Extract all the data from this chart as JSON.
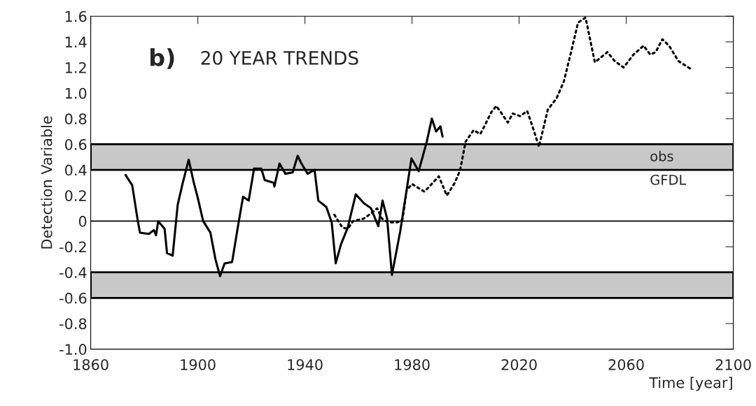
{
  "chart_data": {
    "type": "line",
    "title": "b)",
    "subtitle": "20 YEAR TRENDS",
    "xlabel": "Time [year]",
    "ylabel": "Detection Variable",
    "xlim": [
      1860,
      2100
    ],
    "xticks": [
      1860,
      1900,
      1940,
      1980,
      2020,
      2060,
      2100
    ],
    "ylim": [
      -1.0,
      1.6
    ],
    "yticks": [
      {
        "value": -1,
        "label": "-1.0"
      },
      -0.8,
      -0.6,
      -0.4,
      -0.2,
      0,
      0.2,
      0.4,
      0.6,
      0.8,
      {
        "value": 1,
        "label": "1.0"
      },
      1.2,
      1.4,
      1.6
    ],
    "grid": false,
    "marker": "none",
    "series": [
      {
        "color": "#000000",
        "line_style": "solid",
        "x": [
          1873,
          1875.5,
          1877.6,
          1878.4,
          1881.7,
          1883.6,
          1884.4,
          1885.2,
          1887.6,
          1888.5,
          1890.6,
          1892.5,
          1894.4,
          1896.6,
          1898.5,
          1900,
          1902,
          1904.7,
          1906.6,
          1908.3,
          1910,
          1912.8,
          1915,
          1916.9,
          1919,
          1921,
          1923.7,
          1925,
          1928.3,
          1928.6,
          1930.5,
          1932.7,
          1935.4,
          1937.3,
          1938.7,
          1941,
          1943.6,
          1945,
          1948,
          1950,
          1951.5,
          1953.5,
          1956,
          1959,
          1962,
          1964.7,
          1967.4,
          1969,
          1970.7,
          1972.5,
          1975.6,
          1979.8,
          1982.5,
          1985.5,
          1987.4,
          1989,
          1990.6,
          1991.4
        ],
        "values": [
          0.36,
          0.28,
          0.0,
          -0.09,
          -0.1,
          -0.07,
          -0.11,
          0.0,
          -0.06,
          -0.25,
          -0.27,
          0.13,
          0.3,
          0.48,
          0.3,
          0.18,
          0.0,
          -0.09,
          -0.3,
          -0.43,
          -0.33,
          -0.32,
          -0.04,
          0.19,
          0.16,
          0.41,
          0.41,
          0.32,
          0.3,
          0.27,
          0.45,
          0.37,
          0.38,
          0.51,
          0.45,
          0.37,
          0.4,
          0.16,
          0.11,
          -0.01,
          -0.33,
          -0.18,
          -0.05,
          0.21,
          0.14,
          0.1,
          -0.04,
          0.16,
          0.02,
          -0.42,
          -0.08,
          0.49,
          0.39,
          0.62,
          0.8,
          0.7,
          0.74,
          0.66
        ]
      },
      {
        "color": "#000000",
        "line_style": "dotted",
        "x": [
          1951,
          1954,
          1956,
          1958,
          1962,
          1964.7,
          1967,
          1968.7,
          1971,
          1974.5,
          1976.4,
          1978,
          1980,
          1984.6,
          1986,
          1990,
          1993,
          1996,
          1998,
          2000,
          2003,
          2005.5,
          2007,
          2009.6,
          2011.5,
          2015.8,
          2017.6,
          2020.4,
          2023,
          2025,
          2027.4,
          2030.7,
          2034,
          2036.7,
          2039.4,
          2042,
          2044.8,
          2046.4,
          2048.3,
          2053,
          2055.7,
          2059,
          2062.7,
          2066.5,
          2069,
          2071,
          2073.5,
          2076,
          2079.5,
          2084
        ],
        "values": [
          0.05,
          -0.05,
          -0.06,
          0.0,
          0.02,
          0.06,
          0.1,
          0.02,
          -0.01,
          -0.01,
          0.01,
          0.24,
          0.29,
          0.23,
          0.26,
          0.35,
          0.2,
          0.3,
          0.4,
          0.62,
          0.71,
          0.68,
          0.74,
          0.85,
          0.9,
          0.77,
          0.84,
          0.82,
          0.86,
          0.74,
          0.58,
          0.87,
          0.96,
          1.09,
          1.32,
          1.55,
          1.59,
          1.43,
          1.24,
          1.32,
          1.25,
          1.2,
          1.3,
          1.37,
          1.3,
          1.32,
          1.42,
          1.37,
          1.25,
          1.19
        ]
      }
    ],
    "ref_lines": [
      {
        "axis": "y",
        "value": 0,
        "color": "#000000"
      }
    ],
    "bands": [
      {
        "axis": "y",
        "from": 0.4,
        "to": 0.6,
        "color": "#c8c8c8"
      },
      {
        "axis": "y",
        "from": -0.6,
        "to": -0.4,
        "color": "#c8c8c8"
      }
    ],
    "annotations": [
      "obs",
      "GFDL"
    ]
  }
}
